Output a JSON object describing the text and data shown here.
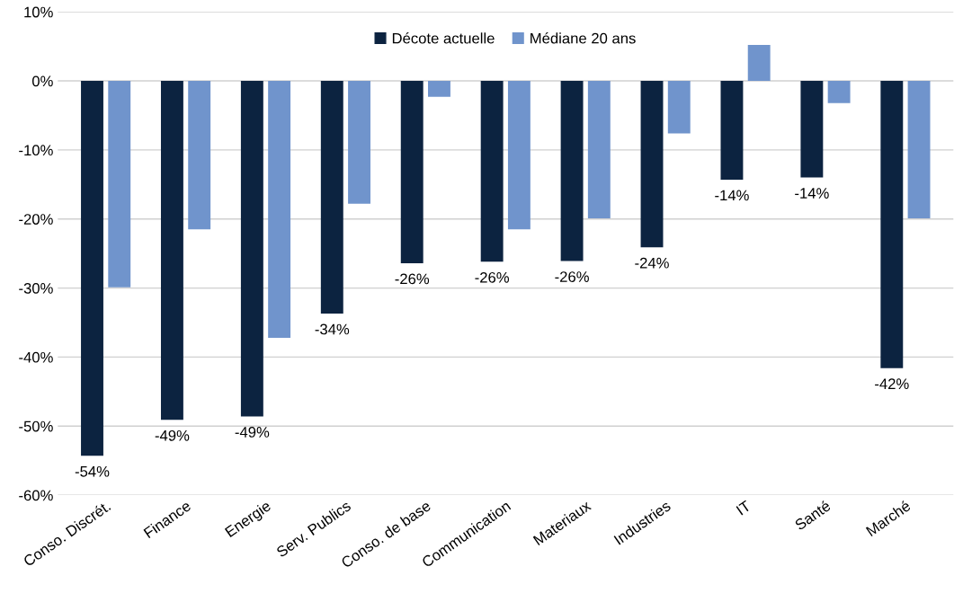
{
  "chart_data": {
    "type": "bar",
    "categories": [
      "Conso. Discrét.",
      "Finance",
      "Energie",
      "Serv. Publics",
      "Conso. de base",
      "Communication",
      "Materiaux",
      "Industries",
      "IT",
      "Santé",
      "Marché"
    ],
    "series": [
      {
        "name": "Décote actuelle",
        "color": "#0c2340",
        "values": [
          -54.3,
          -49.1,
          -48.6,
          -33.7,
          -26.4,
          -26.2,
          -26.1,
          -24.1,
          -14.3,
          -14.0,
          -41.6
        ],
        "value_labels": [
          "-54%",
          "-49%",
          "-49%",
          "-34%",
          "-26%",
          "-26%",
          "-26%",
          "-24%",
          "-14%",
          "-14%",
          "-42%"
        ]
      },
      {
        "name": "Médiane 20 ans",
        "color": "#7094cc",
        "values": [
          -29.9,
          -21.5,
          -37.2,
          -17.8,
          -2.3,
          -21.5,
          -19.9,
          -7.6,
          5.2,
          -3.2,
          -19.9
        ]
      }
    ],
    "ylim": [
      -60,
      10
    ],
    "yticks": [
      {
        "value": -60,
        "label": "-60%"
      },
      {
        "value": -50,
        "label": "-50%"
      },
      {
        "value": -40,
        "label": "-40%"
      },
      {
        "value": -30,
        "label": "-30%"
      },
      {
        "value": -20,
        "label": "-20%"
      },
      {
        "value": -10,
        "label": "-10%"
      },
      {
        "value": 0,
        "label": "0%"
      },
      {
        "value": 10,
        "label": "10%"
      }
    ],
    "grid": "y",
    "legend": "top"
  }
}
